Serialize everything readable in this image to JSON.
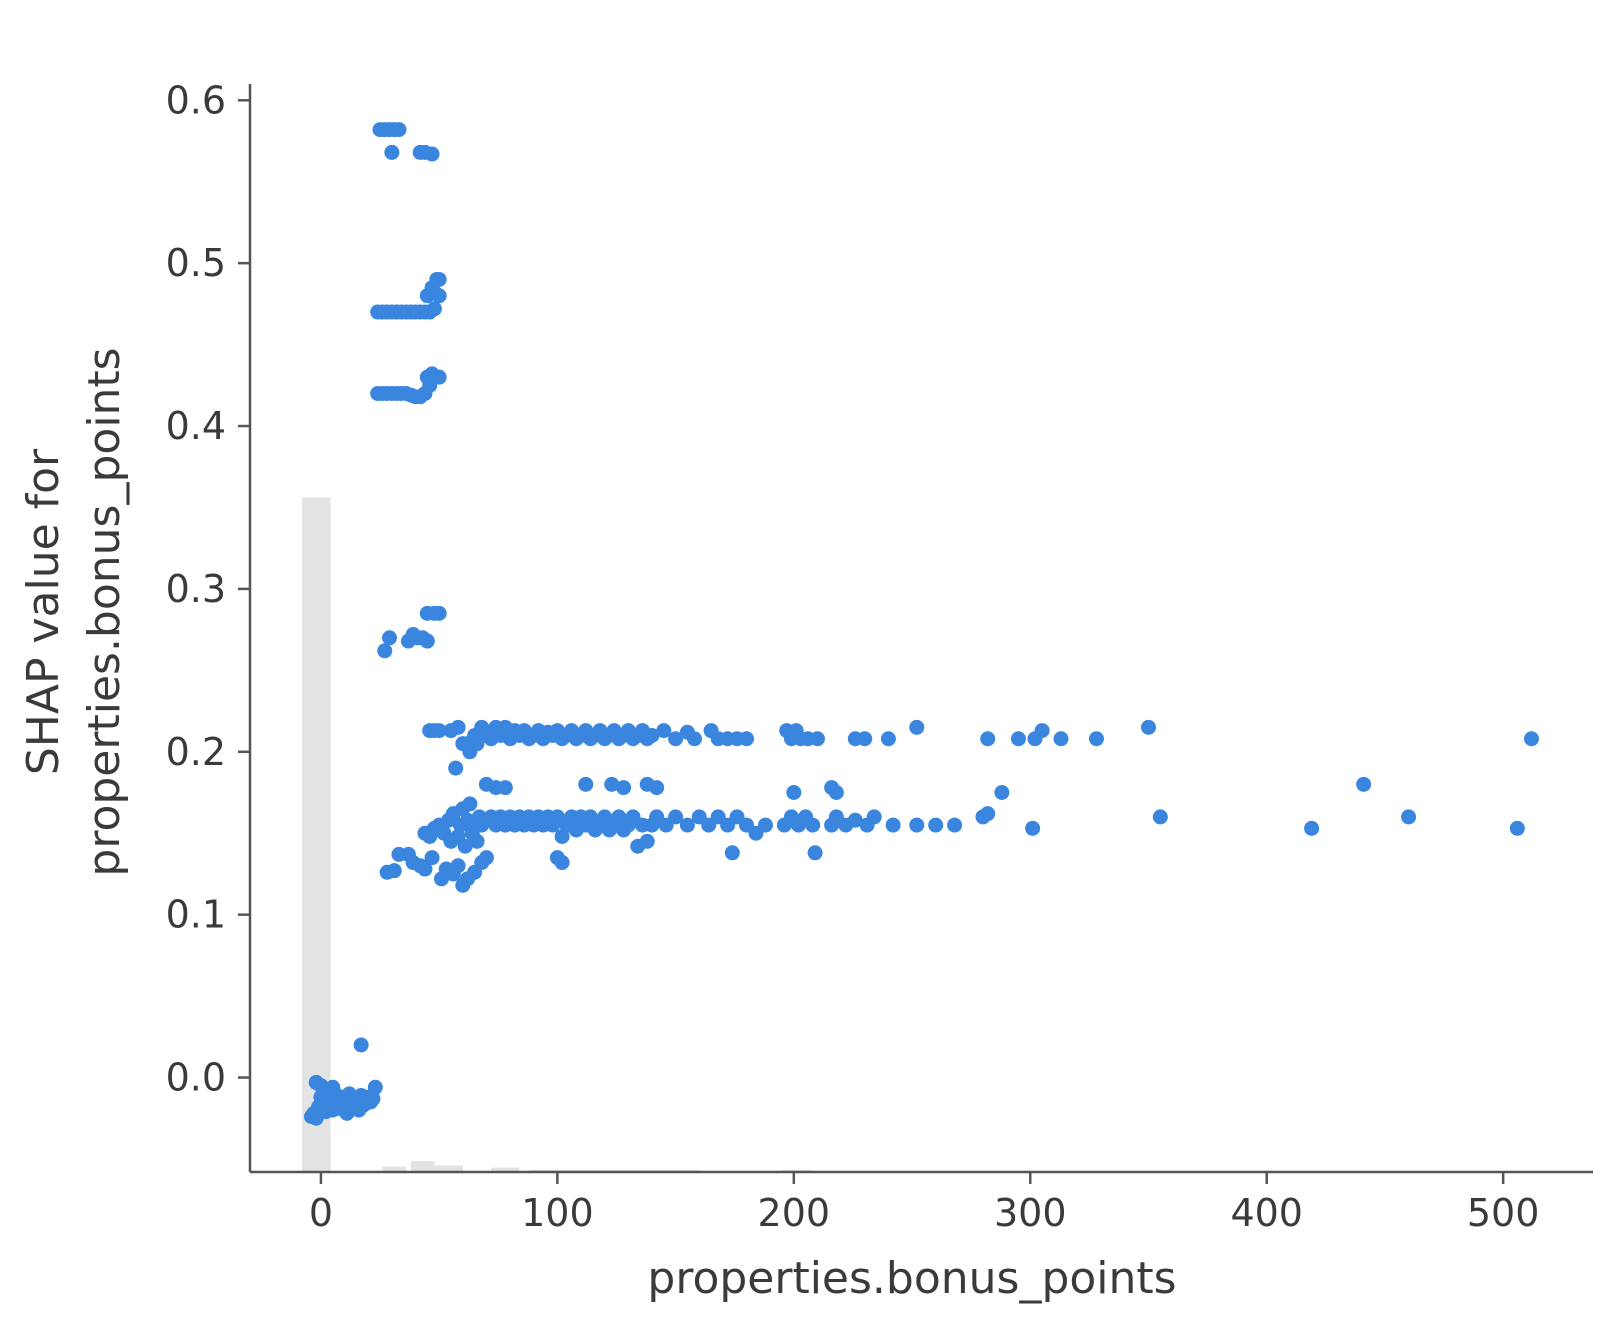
{
  "chart_data": {
    "type": "scatter",
    "xlabel": "properties.bonus_points",
    "ylabel_lines": [
      "SHAP value for",
      "properties.bonus_points"
    ],
    "xlim": [
      -30,
      538
    ],
    "ylim": [
      -0.058,
      0.61
    ],
    "xticks": [
      0,
      100,
      200,
      300,
      400,
      500
    ],
    "yticks": [
      0.0,
      0.1,
      0.2,
      0.3,
      0.4,
      0.5,
      0.6
    ],
    "xtick_labels": [
      "0",
      "100",
      "200",
      "300",
      "400",
      "500"
    ],
    "ytick_labels": [
      "0.0",
      "0.1",
      "0.2",
      "0.3",
      "0.4",
      "0.5",
      "0.6"
    ],
    "grid": false,
    "point_color": "#3a86de",
    "histogram_color": "#e3e3e3",
    "histogram": {
      "description": "faint background distribution of feature values",
      "bins": [
        {
          "x0": -8,
          "x1": 4,
          "height": 0.62
        },
        {
          "x0": 26,
          "x1": 36,
          "height": 0.005
        },
        {
          "x0": 38,
          "x1": 48,
          "height": 0.01
        },
        {
          "x0": 48,
          "x1": 60,
          "height": 0.006
        },
        {
          "x0": 72,
          "x1": 84,
          "height": 0.004
        },
        {
          "x0": 88,
          "x1": 160,
          "height": 0.002
        },
        {
          "x0": 195,
          "x1": 208,
          "height": 0.002
        }
      ]
    },
    "points": [
      [
        -4,
        -0.024
      ],
      [
        -3,
        -0.022
      ],
      [
        -2,
        -0.025
      ],
      [
        -1,
        -0.018
      ],
      [
        0,
        -0.02
      ],
      [
        0,
        -0.012
      ],
      [
        0,
        -0.005
      ],
      [
        1,
        -0.01
      ],
      [
        1,
        -0.015
      ],
      [
        2,
        -0.021
      ],
      [
        2,
        -0.008
      ],
      [
        3,
        -0.018
      ],
      [
        3,
        -0.012
      ],
      [
        4,
        -0.016
      ],
      [
        5,
        -0.02
      ],
      [
        6,
        -0.01
      ],
      [
        6,
        -0.017
      ],
      [
        7,
        -0.014
      ],
      [
        8,
        -0.019
      ],
      [
        9,
        -0.012
      ],
      [
        10,
        -0.02
      ],
      [
        11,
        -0.015
      ],
      [
        12,
        -0.01
      ],
      [
        13,
        -0.018
      ],
      [
        14,
        -0.016
      ],
      [
        15,
        -0.013
      ],
      [
        16,
        -0.02
      ],
      [
        17,
        -0.011
      ],
      [
        18,
        -0.017
      ],
      [
        19,
        -0.014
      ],
      [
        20,
        -0.012
      ],
      [
        21,
        -0.015
      ],
      [
        22,
        -0.013
      ],
      [
        23,
        -0.006
      ],
      [
        17,
        0.02
      ],
      [
        -2,
        -0.003
      ],
      [
        5,
        -0.006
      ],
      [
        11,
        -0.022
      ],
      [
        25,
        0.582
      ],
      [
        27,
        0.582
      ],
      [
        29,
        0.582
      ],
      [
        31,
        0.582
      ],
      [
        33,
        0.582
      ],
      [
        30,
        0.568
      ],
      [
        42,
        0.568
      ],
      [
        44,
        0.568
      ],
      [
        47,
        0.567
      ],
      [
        24,
        0.47
      ],
      [
        26,
        0.47
      ],
      [
        28,
        0.47
      ],
      [
        30,
        0.47
      ],
      [
        32,
        0.47
      ],
      [
        34,
        0.47
      ],
      [
        36,
        0.47
      ],
      [
        38,
        0.47
      ],
      [
        40,
        0.47
      ],
      [
        42,
        0.47
      ],
      [
        44,
        0.47
      ],
      [
        46,
        0.47
      ],
      [
        48,
        0.472
      ],
      [
        45,
        0.48
      ],
      [
        47,
        0.485
      ],
      [
        49,
        0.49
      ],
      [
        50,
        0.49
      ],
      [
        48,
        0.482
      ],
      [
        50,
        0.48
      ],
      [
        24,
        0.42
      ],
      [
        26,
        0.42
      ],
      [
        28,
        0.42
      ],
      [
        30,
        0.42
      ],
      [
        32,
        0.42
      ],
      [
        34,
        0.42
      ],
      [
        36,
        0.42
      ],
      [
        38,
        0.419
      ],
      [
        40,
        0.418
      ],
      [
        42,
        0.418
      ],
      [
        44,
        0.42
      ],
      [
        46,
        0.425
      ],
      [
        45,
        0.43
      ],
      [
        47,
        0.432
      ],
      [
        49,
        0.43
      ],
      [
        50,
        0.43
      ],
      [
        27,
        0.262
      ],
      [
        29,
        0.27
      ],
      [
        37,
        0.268
      ],
      [
        39,
        0.272
      ],
      [
        41,
        0.27
      ],
      [
        43,
        0.27
      ],
      [
        45,
        0.268
      ],
      [
        45,
        0.285
      ],
      [
        48,
        0.285
      ],
      [
        50,
        0.285
      ],
      [
        46,
        0.213
      ],
      [
        48,
        0.213
      ],
      [
        50,
        0.213
      ],
      [
        55,
        0.213
      ],
      [
        58,
        0.215
      ],
      [
        60,
        0.205
      ],
      [
        62,
        0.205
      ],
      [
        63,
        0.2
      ],
      [
        65,
        0.21
      ],
      [
        66,
        0.205
      ],
      [
        68,
        0.215
      ],
      [
        70,
        0.21
      ],
      [
        72,
        0.208
      ],
      [
        74,
        0.215
      ],
      [
        76,
        0.21
      ],
      [
        78,
        0.215
      ],
      [
        80,
        0.208
      ],
      [
        82,
        0.213
      ],
      [
        84,
        0.21
      ],
      [
        86,
        0.213
      ],
      [
        88,
        0.208
      ],
      [
        90,
        0.21
      ],
      [
        92,
        0.213
      ],
      [
        94,
        0.208
      ],
      [
        96,
        0.212
      ],
      [
        98,
        0.21
      ],
      [
        100,
        0.213
      ],
      [
        102,
        0.208
      ],
      [
        104,
        0.21
      ],
      [
        106,
        0.213
      ],
      [
        108,
        0.208
      ],
      [
        110,
        0.21
      ],
      [
        112,
        0.213
      ],
      [
        114,
        0.208
      ],
      [
        116,
        0.21
      ],
      [
        118,
        0.213
      ],
      [
        120,
        0.208
      ],
      [
        122,
        0.21
      ],
      [
        124,
        0.213
      ],
      [
        126,
        0.208
      ],
      [
        128,
        0.21
      ],
      [
        130,
        0.213
      ],
      [
        132,
        0.208
      ],
      [
        134,
        0.21
      ],
      [
        136,
        0.213
      ],
      [
        138,
        0.208
      ],
      [
        140,
        0.21
      ],
      [
        145,
        0.213
      ],
      [
        150,
        0.208
      ],
      [
        155,
        0.212
      ],
      [
        158,
        0.208
      ],
      [
        165,
        0.213
      ],
      [
        168,
        0.208
      ],
      [
        172,
        0.208
      ],
      [
        176,
        0.208
      ],
      [
        180,
        0.208
      ],
      [
        197,
        0.213
      ],
      [
        199,
        0.208
      ],
      [
        201,
        0.213
      ],
      [
        203,
        0.208
      ],
      [
        206,
        0.208
      ],
      [
        210,
        0.208
      ],
      [
        226,
        0.208
      ],
      [
        230,
        0.208
      ],
      [
        240,
        0.208
      ],
      [
        252,
        0.215
      ],
      [
        282,
        0.208
      ],
      [
        295,
        0.208
      ],
      [
        302,
        0.208
      ],
      [
        305,
        0.213
      ],
      [
        313,
        0.208
      ],
      [
        328,
        0.208
      ],
      [
        350,
        0.215
      ],
      [
        512,
        0.208
      ],
      [
        57,
        0.19
      ],
      [
        70,
        0.18
      ],
      [
        74,
        0.178
      ],
      [
        78,
        0.178
      ],
      [
        112,
        0.18
      ],
      [
        123,
        0.18
      ],
      [
        128,
        0.178
      ],
      [
        138,
        0.18
      ],
      [
        142,
        0.178
      ],
      [
        200,
        0.175
      ],
      [
        216,
        0.178
      ],
      [
        218,
        0.175
      ],
      [
        288,
        0.175
      ],
      [
        441,
        0.18
      ],
      [
        28,
        0.126
      ],
      [
        31,
        0.127
      ],
      [
        33,
        0.137
      ],
      [
        37,
        0.137
      ],
      [
        39,
        0.132
      ],
      [
        42,
        0.13
      ],
      [
        44,
        0.128
      ],
      [
        47,
        0.135
      ],
      [
        51,
        0.122
      ],
      [
        53,
        0.128
      ],
      [
        56,
        0.125
      ],
      [
        58,
        0.13
      ],
      [
        60,
        0.118
      ],
      [
        62,
        0.122
      ],
      [
        65,
        0.126
      ],
      [
        68,
        0.132
      ],
      [
        70,
        0.135
      ],
      [
        100,
        0.135
      ],
      [
        102,
        0.132
      ],
      [
        44,
        0.15
      ],
      [
        46,
        0.148
      ],
      [
        48,
        0.153
      ],
      [
        50,
        0.155
      ],
      [
        52,
        0.15
      ],
      [
        54,
        0.158
      ],
      [
        55,
        0.145
      ],
      [
        56,
        0.162
      ],
      [
        58,
        0.148
      ],
      [
        59,
        0.155
      ],
      [
        60,
        0.165
      ],
      [
        61,
        0.142
      ],
      [
        62,
        0.158
      ],
      [
        63,
        0.168
      ],
      [
        64,
        0.15
      ],
      [
        65,
        0.155
      ],
      [
        66,
        0.145
      ],
      [
        67,
        0.16
      ],
      [
        68,
        0.155
      ],
      [
        70,
        0.158
      ],
      [
        72,
        0.16
      ],
      [
        74,
        0.155
      ],
      [
        76,
        0.16
      ],
      [
        78,
        0.155
      ],
      [
        80,
        0.16
      ],
      [
        82,
        0.155
      ],
      [
        84,
        0.16
      ],
      [
        86,
        0.155
      ],
      [
        88,
        0.16
      ],
      [
        90,
        0.155
      ],
      [
        92,
        0.16
      ],
      [
        94,
        0.155
      ],
      [
        96,
        0.16
      ],
      [
        98,
        0.155
      ],
      [
        100,
        0.16
      ],
      [
        102,
        0.148
      ],
      [
        104,
        0.155
      ],
      [
        106,
        0.16
      ],
      [
        108,
        0.152
      ],
      [
        110,
        0.16
      ],
      [
        112,
        0.155
      ],
      [
        114,
        0.16
      ],
      [
        116,
        0.152
      ],
      [
        118,
        0.155
      ],
      [
        120,
        0.16
      ],
      [
        122,
        0.152
      ],
      [
        124,
        0.155
      ],
      [
        126,
        0.16
      ],
      [
        128,
        0.152
      ],
      [
        130,
        0.155
      ],
      [
        132,
        0.16
      ],
      [
        134,
        0.142
      ],
      [
        136,
        0.155
      ],
      [
        138,
        0.145
      ],
      [
        140,
        0.155
      ],
      [
        142,
        0.16
      ],
      [
        146,
        0.155
      ],
      [
        150,
        0.16
      ],
      [
        155,
        0.155
      ],
      [
        160,
        0.16
      ],
      [
        164,
        0.155
      ],
      [
        168,
        0.16
      ],
      [
        172,
        0.155
      ],
      [
        174,
        0.138
      ],
      [
        176,
        0.16
      ],
      [
        180,
        0.155
      ],
      [
        184,
        0.15
      ],
      [
        188,
        0.155
      ],
      [
        196,
        0.155
      ],
      [
        199,
        0.16
      ],
      [
        202,
        0.155
      ],
      [
        205,
        0.16
      ],
      [
        208,
        0.155
      ],
      [
        209,
        0.138
      ],
      [
        216,
        0.155
      ],
      [
        218,
        0.16
      ],
      [
        222,
        0.155
      ],
      [
        226,
        0.158
      ],
      [
        231,
        0.155
      ],
      [
        234,
        0.16
      ],
      [
        242,
        0.155
      ],
      [
        252,
        0.155
      ],
      [
        260,
        0.155
      ],
      [
        268,
        0.155
      ],
      [
        280,
        0.16
      ],
      [
        282,
        0.162
      ],
      [
        301,
        0.153
      ],
      [
        355,
        0.16
      ],
      [
        419,
        0.153
      ],
      [
        460,
        0.16
      ],
      [
        506,
        0.153
      ]
    ]
  }
}
